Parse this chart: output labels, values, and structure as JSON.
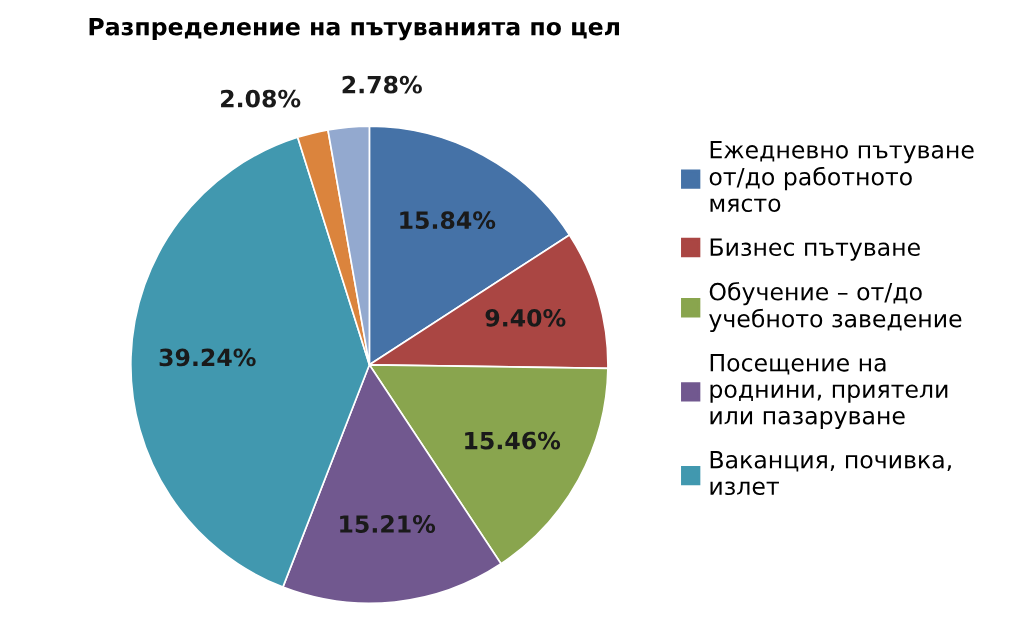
{
  "chart_data": {
    "type": "pie",
    "title": "Разпределение на пътуванията по цел",
    "categories": [
      "Ежедневно пътуване от/до работното място",
      "Бизнес пътуване",
      "Обучение – от/до учебното заведение",
      "Посещение на роднини, приятели или пазаруване",
      "Ваканция, почивка, излет",
      null,
      null
    ],
    "values": [
      15.84,
      9.4,
      15.46,
      15.21,
      39.24,
      2.08,
      2.78
    ],
    "value_labels": [
      "15.84%",
      "9.40%",
      "15.46%",
      "15.21%",
      "39.24%",
      "2.08%",
      "2.78%"
    ],
    "colors": [
      "#4572a7",
      "#aa4643",
      "#89a54e",
      "#71588f",
      "#4198af",
      "#db843d",
      "#93a9cf"
    ],
    "legend": "right"
  }
}
